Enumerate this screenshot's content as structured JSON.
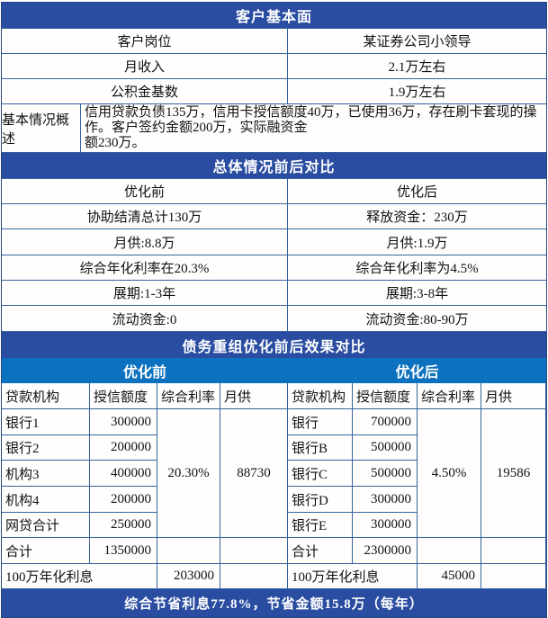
{
  "theme": {
    "header_bg": "#2A4DA1",
    "subheader_bg": "#0C71BE",
    "grid_border": "#34639F",
    "text_color": "#111111"
  },
  "client": {
    "title": "客户基本面",
    "rows": [
      {
        "label": "客户岗位",
        "value": "某证券公司小领导"
      },
      {
        "label": "月收入",
        "value": "2.1万左右"
      },
      {
        "label": "公积金基数",
        "value": "1.9万左右"
      }
    ],
    "overview_label": "基本情况概述",
    "overview_lines": [
      "信用贷款负债135万，信用卡授信额度40万，已使用36万，存在刷卡套现的操",
      "作。客户签约金额200万，实际融资金",
      "额230万。"
    ]
  },
  "overall": {
    "title": "总体情况前后对比",
    "col_before": "优化前",
    "col_after": "优化后",
    "rows": [
      {
        "before": "协助结清总计130万",
        "after": "释放资金：230万"
      },
      {
        "before": "月供:8.8万",
        "after": "月供:1.9万"
      },
      {
        "before": "综合年化利率在20.3%",
        "after": "综合年化利率为4.5%"
      },
      {
        "before": "展期:1-3年",
        "after": "展期:3-8年"
      },
      {
        "before": "流动资金:0",
        "after": "流动资金:80-90万"
      }
    ]
  },
  "debt": {
    "title": "债务重组优化前后效果对比",
    "before_label": "优化前",
    "after_label": "优化后",
    "headers": [
      "贷款机构",
      "授信额度",
      "综合利率",
      "月供"
    ],
    "before": {
      "rows": [
        {
          "name": "银行1",
          "amount": "300000"
        },
        {
          "name": "银行2",
          "amount": "200000"
        },
        {
          "name": "机构3",
          "amount": "400000"
        },
        {
          "name": "机构4",
          "amount": "200000"
        },
        {
          "name": "网贷合计",
          "amount": "250000"
        }
      ],
      "rate": "20.30%",
      "monthly": "88730",
      "total_label": "合计",
      "total_amount": "1350000",
      "interest_label": "100万年化利息",
      "interest_value": "203000"
    },
    "after": {
      "rows": [
        {
          "name": "银行",
          "amount": "700000"
        },
        {
          "name": "银行B",
          "amount": "500000"
        },
        {
          "name": "银行C",
          "amount": "500000"
        },
        {
          "name": "银行D",
          "amount": "300000"
        },
        {
          "name": "银行E",
          "amount": "300000"
        }
      ],
      "rate": "4.50%",
      "monthly": "19586",
      "total_label": "合计",
      "total_amount": "2300000",
      "interest_label": "100万年化利息",
      "interest_value": "45000"
    },
    "footer": "综合节省利息77.8%，节省金额15.8万（每年）"
  }
}
